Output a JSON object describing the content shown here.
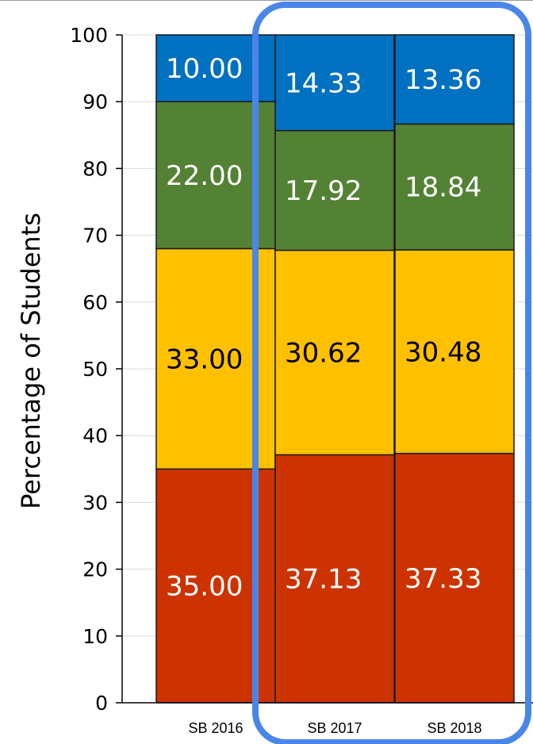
{
  "chart_data": {
    "type": "bar",
    "stacked": true,
    "ylabel": "Percentage of Students",
    "xlabel": "",
    "ylim": [
      0,
      100
    ],
    "yticks": [
      0,
      10,
      20,
      30,
      40,
      50,
      60,
      70,
      80,
      90,
      100
    ],
    "grid": true,
    "categories": [
      "SB 2016",
      "SB 2017",
      "SB 2018"
    ],
    "series": [
      {
        "values": [
          35.0,
          37.13,
          37.33
        ],
        "labels": [
          "35.00",
          "37.13",
          "37.33"
        ],
        "color": "#cc3300",
        "label_color": "#ffffff"
      },
      {
        "values": [
          33.0,
          30.62,
          30.48
        ],
        "labels": [
          "33.00",
          "30.62",
          "30.48"
        ],
        "color": "#ffc000",
        "label_color": "#000000"
      },
      {
        "values": [
          22.0,
          17.92,
          18.84
        ],
        "labels": [
          "22.00",
          "17.92",
          "18.84"
        ],
        "color": "#548235",
        "label_color": "#ffffff"
      },
      {
        "values": [
          10.0,
          14.33,
          13.36
        ],
        "labels": [
          "10.00",
          "14.33",
          "13.36"
        ],
        "color": "#0070c0",
        "label_color": "#ffffff"
      }
    ],
    "highlight": {
      "categories": [
        "SB 2017",
        "SB 2018"
      ],
      "color": "#4a86e8"
    }
  }
}
